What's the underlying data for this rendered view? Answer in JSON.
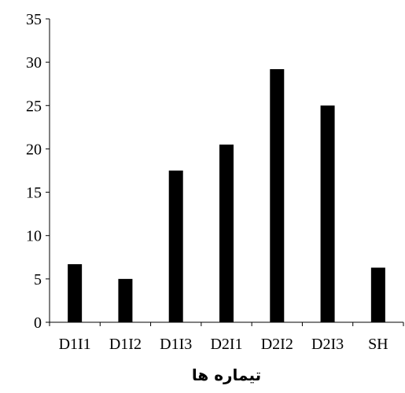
{
  "chart_data": {
    "type": "bar",
    "categories": [
      "D1I1",
      "D1I2",
      "D1I3",
      "D2I1",
      "D2I2",
      "D2I3",
      "SH"
    ],
    "values": [
      6.7,
      5.0,
      17.5,
      20.5,
      29.2,
      25.0,
      6.3
    ],
    "xlabel": "تیماره ها",
    "ylabel": "",
    "ylim": [
      0,
      35
    ],
    "yticks": [
      0,
      5,
      10,
      15,
      20,
      25,
      30,
      35
    ],
    "grid": false,
    "bar_color": "#000000"
  }
}
